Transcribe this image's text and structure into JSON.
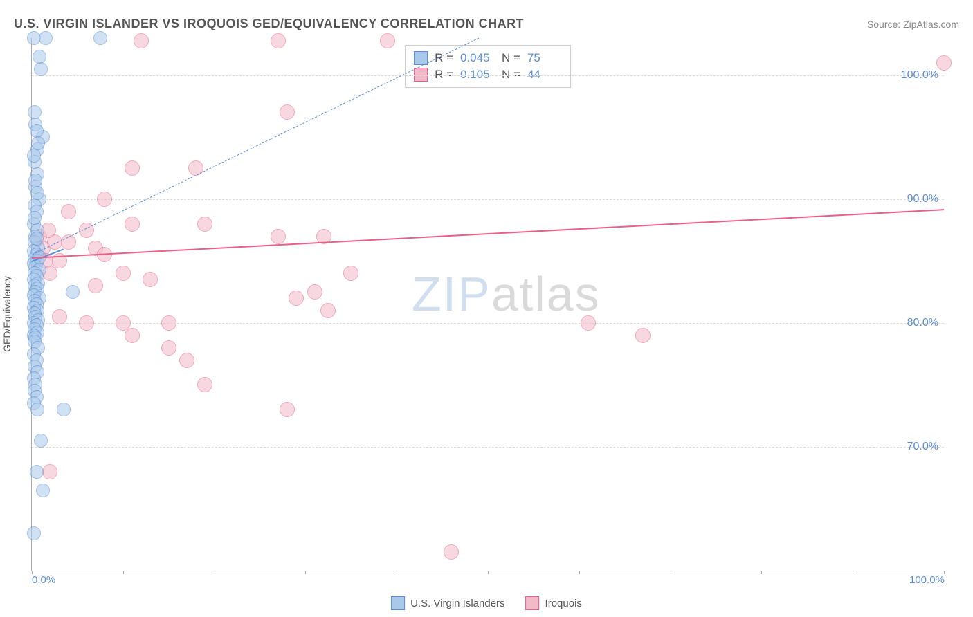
{
  "header": {
    "title": "U.S. VIRGIN ISLANDER VS IROQUOIS GED/EQUIVALENCY CORRELATION CHART",
    "source_prefix": "Source: ",
    "source": "ZipAtlas.com"
  },
  "watermark": {
    "zip": "ZIP",
    "atlas": "atlas"
  },
  "axes": {
    "ylabel": "GED/Equivalency",
    "x_min": 0,
    "x_max": 100,
    "y_min": 60,
    "y_max": 103,
    "x_ticks": [
      0,
      10,
      20,
      30,
      40,
      50,
      60,
      70,
      80,
      90,
      100
    ],
    "x_tick_labels": {
      "0": "0.0%",
      "100": "100.0%"
    },
    "y_gridlines": [
      70,
      80,
      90,
      100
    ],
    "y_labels": {
      "70": "70.0%",
      "80": "80.0%",
      "90": "90.0%",
      "100": "100.0%"
    },
    "grid_color": "#dddddd",
    "axis_color": "#aaaaaa",
    "tick_label_color": "#5b8dd6"
  },
  "series": {
    "usvi": {
      "label": "U.S. Virgin Islanders",
      "fill": "#a9c9ea",
      "stroke": "#5b8dd6",
      "marker_radius": 9,
      "opacity": 0.55,
      "R": "0.045",
      "N": "75",
      "trend": {
        "x1": 0,
        "y1": 85,
        "x2": 3.5,
        "y2": 86,
        "width": 2,
        "dash": false
      },
      "dashed_line": {
        "x1": 0,
        "y1": 85.5,
        "x2": 49,
        "y2": 103,
        "color": "#5b8dd6"
      },
      "points": [
        [
          0.2,
          103
        ],
        [
          1.5,
          103
        ],
        [
          7.5,
          103
        ],
        [
          1.0,
          100.5
        ],
        [
          0.8,
          101.5
        ],
        [
          1.2,
          95
        ],
        [
          0.3,
          93
        ],
        [
          0.6,
          92
        ],
        [
          0.4,
          91
        ],
        [
          0.8,
          90
        ],
        [
          0.3,
          89.5
        ],
        [
          0.5,
          89
        ],
        [
          0.2,
          88
        ],
        [
          0.6,
          87.5
        ],
        [
          0.4,
          87
        ],
        [
          0.3,
          86.5
        ],
        [
          0.7,
          86
        ],
        [
          0.2,
          85.8
        ],
        [
          0.5,
          85.5
        ],
        [
          0.3,
          85.2
        ],
        [
          0.6,
          85
        ],
        [
          0.2,
          84.8
        ],
        [
          0.4,
          84.5
        ],
        [
          0.8,
          84.3
        ],
        [
          0.3,
          84
        ],
        [
          0.5,
          83.8
        ],
        [
          0.2,
          83.5
        ],
        [
          0.7,
          83.2
        ],
        [
          0.3,
          83
        ],
        [
          0.6,
          82.8
        ],
        [
          0.4,
          82.5
        ],
        [
          0.2,
          82.2
        ],
        [
          0.8,
          82
        ],
        [
          0.3,
          81.8
        ],
        [
          0.5,
          81.5
        ],
        [
          0.2,
          81.2
        ],
        [
          0.6,
          81
        ],
        [
          0.3,
          80.8
        ],
        [
          0.4,
          80.5
        ],
        [
          0.7,
          80.2
        ],
        [
          0.2,
          80
        ],
        [
          0.5,
          79.8
        ],
        [
          0.3,
          79.5
        ],
        [
          0.6,
          79.2
        ],
        [
          0.2,
          79
        ],
        [
          0.4,
          78.8
        ],
        [
          0.3,
          78.5
        ],
        [
          0.7,
          78
        ],
        [
          0.2,
          77.5
        ],
        [
          0.5,
          77
        ],
        [
          0.3,
          76.5
        ],
        [
          0.6,
          76
        ],
        [
          0.2,
          75.5
        ],
        [
          0.4,
          75
        ],
        [
          0.3,
          74.5
        ],
        [
          0.5,
          74
        ],
        [
          0.2,
          73.5
        ],
        [
          0.6,
          73
        ],
        [
          4.5,
          82.5
        ],
        [
          3.5,
          73
        ],
        [
          1.0,
          70.5
        ],
        [
          1.2,
          66.5
        ],
        [
          0.5,
          68
        ],
        [
          0.2,
          63
        ],
        [
          0.4,
          96
        ],
        [
          0.6,
          94
        ],
        [
          0.3,
          97
        ],
        [
          0.5,
          95.5
        ],
        [
          0.7,
          94.5
        ],
        [
          0.2,
          93.5
        ],
        [
          0.4,
          91.5
        ],
        [
          0.6,
          90.5
        ],
        [
          0.3,
          88.5
        ],
        [
          0.5,
          86.8
        ],
        [
          0.8,
          85.3
        ]
      ]
    },
    "iroquois": {
      "label": "Iroquois",
      "fill": "#f2b9c9",
      "stroke": "#e85f87",
      "marker_radius": 10,
      "opacity": 0.55,
      "R": "0.105",
      "N": "44",
      "trend": {
        "x1": 0,
        "y1": 85.3,
        "x2": 100,
        "y2": 89.2,
        "width": 2.5,
        "dash": false
      },
      "points": [
        [
          12,
          102.8
        ],
        [
          27,
          102.8
        ],
        [
          39,
          102.8
        ],
        [
          100,
          101
        ],
        [
          28,
          97
        ],
        [
          11,
          92.5
        ],
        [
          18,
          92.5
        ],
        [
          8,
          90
        ],
        [
          4,
          89
        ],
        [
          4,
          86.5
        ],
        [
          6,
          87.5
        ],
        [
          7,
          86
        ],
        [
          8,
          85.5
        ],
        [
          11,
          88
        ],
        [
          19,
          88
        ],
        [
          27,
          87
        ],
        [
          32,
          87
        ],
        [
          7,
          83
        ],
        [
          10,
          84
        ],
        [
          13,
          83.5
        ],
        [
          29,
          82
        ],
        [
          31,
          82.5
        ],
        [
          35,
          84
        ],
        [
          32.5,
          81
        ],
        [
          3,
          80.5
        ],
        [
          6,
          80
        ],
        [
          10,
          80
        ],
        [
          15,
          80
        ],
        [
          11,
          79
        ],
        [
          15,
          78
        ],
        [
          17,
          77
        ],
        [
          19,
          75
        ],
        [
          61,
          80
        ],
        [
          67,
          79
        ],
        [
          28,
          73
        ],
        [
          2,
          68
        ],
        [
          46,
          61.5
        ],
        [
          0.8,
          87
        ],
        [
          1.2,
          86
        ],
        [
          1.5,
          85
        ],
        [
          2,
          84
        ],
        [
          2.5,
          86.5
        ],
        [
          3,
          85
        ],
        [
          1.8,
          87.5
        ]
      ]
    }
  },
  "legend": {
    "items": [
      {
        "key": "usvi",
        "label": "U.S. Virgin Islanders"
      },
      {
        "key": "iroquois",
        "label": "Iroquois"
      }
    ]
  },
  "stats_labels": {
    "R": "R =",
    "N": "N ="
  }
}
